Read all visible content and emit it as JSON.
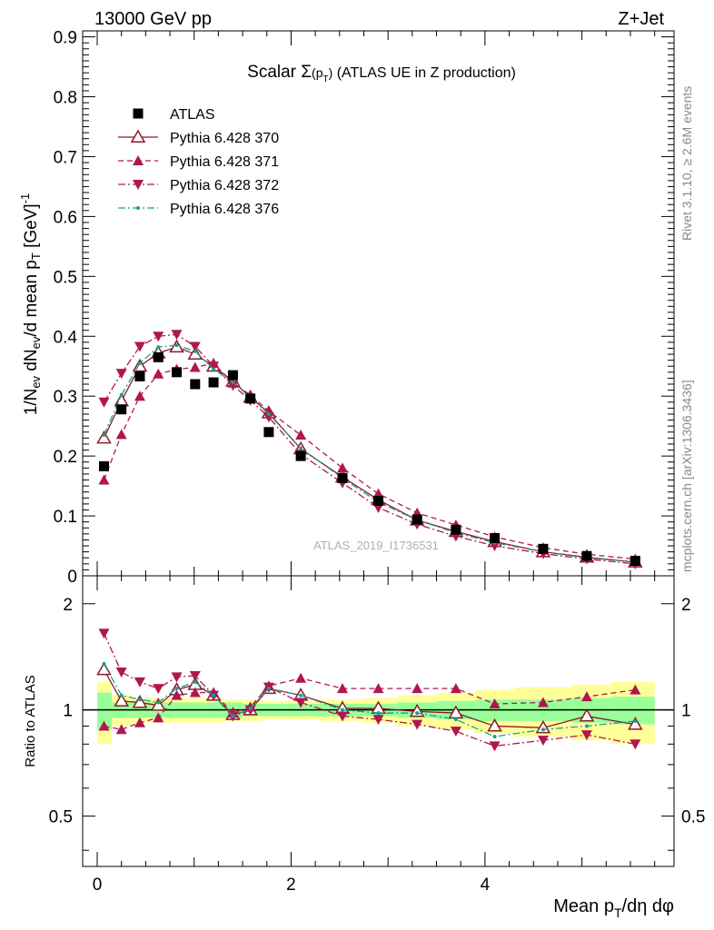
{
  "header": {
    "left": "13000 GeV pp",
    "right": "Z+Jet"
  },
  "side_labels": {
    "rivet": "Rivet 3.1.10, ≥ 2.6M events",
    "mcplots": "mcplots.cern.ch [arXiv:1306.3436]"
  },
  "watermark": "ATLAS_2019_I1736531",
  "chart_data": {
    "type": "scatter",
    "title": "Scalar Σ(p_T) (ATLAS UE in Z production)",
    "xlabel": "Mean p_T/dη dφ",
    "ylabel": "1/N_ev dN_ev/d mean p_T [GeV]^-1",
    "ratio_ylabel": "Ratio to ATLAS",
    "xlim": [
      -0.15,
      5.95
    ],
    "ylim": [
      0,
      0.91
    ],
    "ratio_ylim": [
      0.36,
      2.4
    ],
    "grid": false,
    "legend_position": "top-left",
    "x_ticks": [
      "0",
      "2",
      "4"
    ],
    "y_ticks": [
      "0",
      "0.1",
      "0.2",
      "0.3",
      "0.4",
      "0.5",
      "0.6",
      "0.7",
      "0.8",
      "0.9"
    ],
    "ratio_ticks": [
      "0.5",
      "1",
      "2"
    ],
    "x": [
      0.07,
      0.25,
      0.44,
      0.63,
      0.82,
      1.01,
      1.2,
      1.4,
      1.58,
      1.77,
      2.1,
      2.53,
      2.9,
      3.3,
      3.7,
      4.1,
      4.6,
      5.05,
      5.55
    ],
    "series": [
      {
        "name": "ATLAS",
        "marker": "square",
        "color": "#000000",
        "values": [
          0.183,
          0.278,
          0.333,
          0.365,
          0.34,
          0.32,
          0.323,
          0.335,
          0.296,
          0.24,
          0.2,
          0.163,
          0.125,
          0.094,
          0.077,
          0.063,
          0.045,
          0.033,
          0.025
        ],
        "ratio": [
          1,
          1,
          1,
          1,
          1,
          1,
          1,
          1,
          1,
          1,
          1,
          1,
          1,
          1,
          1,
          1,
          1,
          1,
          1
        ]
      },
      {
        "name": "Pythia 6.428 370",
        "marker": "open-triangle-up",
        "color": "#8b1a2a",
        "line": "solid",
        "values": [
          0.23,
          0.292,
          0.35,
          0.372,
          0.382,
          0.37,
          0.35,
          0.325,
          0.298,
          0.272,
          0.212,
          0.165,
          0.127,
          0.093,
          0.074,
          0.057,
          0.04,
          0.031,
          0.023
        ],
        "ratio": [
          1.3,
          1.06,
          1.05,
          1.03,
          1.14,
          1.18,
          1.1,
          0.97,
          1.0,
          1.15,
          1.1,
          1.01,
          1.01,
          0.99,
          0.98,
          0.9,
          0.89,
          0.96,
          0.91
        ]
      },
      {
        "name": "Pythia 6.428 371",
        "marker": "triangle-up",
        "color": "#b0174f",
        "line": "dashed",
        "values": [
          0.16,
          0.236,
          0.3,
          0.337,
          0.345,
          0.348,
          0.355,
          0.322,
          0.302,
          0.275,
          0.235,
          0.18,
          0.137,
          0.105,
          0.085,
          0.065,
          0.047,
          0.036,
          0.028
        ],
        "ratio": [
          0.9,
          0.88,
          0.92,
          0.95,
          1.1,
          1.12,
          1.12,
          0.98,
          1.02,
          1.17,
          1.23,
          1.15,
          1.15,
          1.15,
          1.15,
          1.04,
          1.05,
          1.09,
          1.14
        ]
      },
      {
        "name": "Pythia 6.428 372",
        "marker": "triangle-down",
        "color": "#b0174f",
        "line": "dashdot",
        "values": [
          0.29,
          0.338,
          0.383,
          0.4,
          0.403,
          0.383,
          0.35,
          0.318,
          0.293,
          0.265,
          0.203,
          0.155,
          0.114,
          0.086,
          0.066,
          0.05,
          0.037,
          0.028,
          0.02
        ],
        "ratio": [
          1.65,
          1.28,
          1.2,
          1.15,
          1.24,
          1.25,
          1.1,
          0.96,
          1.0,
          1.16,
          1.05,
          0.96,
          0.94,
          0.91,
          0.87,
          0.79,
          0.82,
          0.85,
          0.8
        ]
      },
      {
        "name": "Pythia 6.428 376",
        "marker": "dot",
        "color": "#1a9e8f",
        "line": "dashdot",
        "values": [
          0.235,
          0.302,
          0.355,
          0.382,
          0.385,
          0.375,
          0.345,
          0.323,
          0.298,
          0.27,
          0.213,
          0.163,
          0.123,
          0.093,
          0.072,
          0.055,
          0.04,
          0.03,
          0.023
        ],
        "ratio": [
          1.35,
          1.1,
          1.07,
          1.05,
          1.15,
          1.2,
          1.1,
          0.96,
          1.01,
          1.15,
          1.1,
          1.0,
          0.98,
          0.98,
          0.94,
          0.84,
          0.88,
          0.9,
          0.93
        ]
      }
    ],
    "uncertainty_band": {
      "x_edges": [
        0.0,
        0.15,
        0.35,
        0.55,
        0.75,
        0.9,
        1.1,
        1.3,
        1.5,
        1.7,
        1.9,
        2.3,
        2.75,
        3.1,
        3.5,
        3.9,
        4.3,
        4.9,
        5.3,
        5.75
      ],
      "inner": [
        0.12,
        0.05,
        0.05,
        0.05,
        0.05,
        0.05,
        0.05,
        0.05,
        0.04,
        0.04,
        0.04,
        0.04,
        0.04,
        0.05,
        0.06,
        0.07,
        0.07,
        0.08,
        0.09
      ],
      "outer": [
        0.2,
        0.1,
        0.08,
        0.08,
        0.08,
        0.08,
        0.08,
        0.07,
        0.07,
        0.06,
        0.06,
        0.07,
        0.08,
        0.1,
        0.12,
        0.14,
        0.16,
        0.18,
        0.2
      ]
    }
  }
}
